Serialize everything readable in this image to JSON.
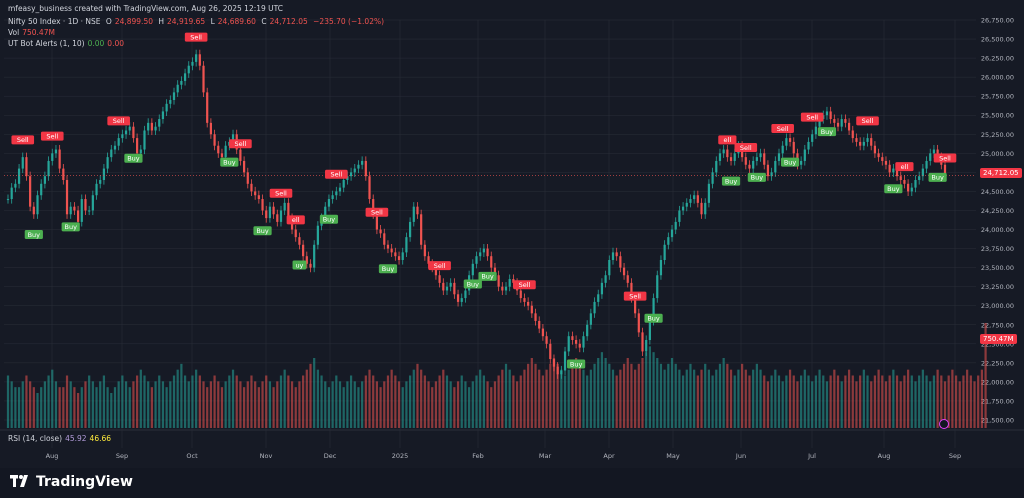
{
  "header": {
    "credit": "mfeasy_business created with TradingView.com, Aug 26, 2025 12:19 UTC",
    "symbol": "Nifty 50 Index · 1D · NSE",
    "o_label": "O",
    "o_value": "24,899.50",
    "h_label": "H",
    "h_value": "24,919.65",
    "l_label": "L",
    "l_value": "24,689.60",
    "c_label": "C",
    "c_value": "24,712.05",
    "change": "−235.70 (−1.02%)",
    "vol_label": "Vol",
    "vol_value": "750.47M",
    "ut_label": "UT Bot Alerts (1, 10)",
    "ut_v1": "0.00",
    "ut_v2": "0.00",
    "rsi_label": "RSI (14, close)",
    "rsi_v1": "45.92",
    "rsi_v2": "46.66"
  },
  "brand": "TradingView",
  "colors": {
    "up": "#26a69a",
    "down": "#ef5350",
    "buy": "#4caf50",
    "sell": "#f23645",
    "bg": "#161a25",
    "grid": "#2a2e39"
  },
  "chart_data": {
    "type": "candlestick",
    "y_ticks": [
      "26,750.00",
      "26,500.00",
      "26,250.00",
      "26,000.00",
      "25,750.00",
      "25,500.00",
      "25,250.00",
      "25,000.00",
      "24,750.00",
      "24,500.00",
      "24,250.00",
      "24,000.00",
      "23,750.00",
      "23,500.00",
      "23,250.00",
      "23,000.00",
      "22,750.00",
      "22,500.00",
      "22,250.00",
      "22,000.00",
      "21,750.00",
      "21,500.00"
    ],
    "ylim": [
      21500,
      26750
    ],
    "x_labels": [
      "Aug",
      "Sep",
      "Oct",
      "Nov",
      "Dec",
      "2025",
      "Feb",
      "Mar",
      "Apr",
      "May",
      "Jun",
      "Jul",
      "Aug",
      "Sep"
    ],
    "last_price": "24,712.05",
    "last_volume": "750.47M",
    "closes": [
      24400,
      24550,
      24600,
      24800,
      24950,
      24700,
      24300,
      24200,
      24450,
      24600,
      24700,
      24900,
      25000,
      25050,
      24800,
      24650,
      24200,
      24300,
      24250,
      24100,
      24400,
      24250,
      24250,
      24450,
      24600,
      24650,
      24800,
      24950,
      25050,
      25100,
      25200,
      25250,
      25300,
      25350,
      25200,
      25000,
      25050,
      25300,
      25400,
      25300,
      25350,
      25450,
      25550,
      25650,
      25700,
      25800,
      25900,
      25950,
      26050,
      26150,
      26200,
      26300,
      26150,
      25800,
      25400,
      25250,
      25100,
      25000,
      24950,
      25100,
      25150,
      25250,
      25050,
      24900,
      24750,
      24600,
      24500,
      24450,
      24400,
      24250,
      24150,
      24300,
      24200,
      24100,
      24250,
      24350,
      24150,
      24000,
      23900,
      23800,
      23650,
      23550,
      23500,
      23800,
      24050,
      24150,
      24300,
      24400,
      24450,
      24500,
      24550,
      24650,
      24700,
      24750,
      24800,
      24850,
      24900,
      24700,
      24400,
      24200,
      24000,
      23950,
      23800,
      23750,
      23700,
      23650,
      23600,
      23700,
      23900,
      24100,
      24300,
      24200,
      23800,
      23650,
      23550,
      23500,
      23400,
      23300,
      23200,
      23250,
      23300,
      23150,
      23050,
      23100,
      23200,
      23400,
      23550,
      23650,
      23700,
      23750,
      23650,
      23500,
      23400,
      23250,
      23200,
      23250,
      23350,
      23300,
      23200,
      23100,
      23050,
      23000,
      22900,
      22800,
      22700,
      22600,
      22500,
      22300,
      22200,
      22100,
      22150,
      22400,
      22600,
      22550,
      22500,
      22450,
      22600,
      22750,
      22900,
      23050,
      23150,
      23300,
      23400,
      23600,
      23700,
      23650,
      23500,
      23400,
      23300,
      23100,
      22900,
      22650,
      22400,
      22550,
      22800,
      23100,
      23400,
      23600,
      23800,
      23900,
      24000,
      24100,
      24250,
      24300,
      24350,
      24400,
      24450,
      24350,
      24200,
      24350,
      24600,
      24750,
      24900,
      25000,
      25050,
      24950,
      24900,
      25000,
      25100,
      24950,
      24850,
      24800,
      24900,
      24950,
      25000,
      24850,
      24700,
      24750,
      24900,
      25000,
      25100,
      25200,
      25150,
      25000,
      24850,
      24900,
      25050,
      25150,
      25250,
      25350,
      25450,
      25500,
      25550,
      25450,
      25400,
      25350,
      25450,
      25400,
      25300,
      25200,
      25150,
      25100,
      25150,
      25200,
      25100,
      25000,
      24950,
      24900,
      24850,
      24750,
      24800,
      24700,
      24650,
      24600,
      24500,
      24550,
      24650,
      24700,
      24800,
      24900,
      25000,
      25050,
      24950,
      24850,
      24712
    ],
    "volumes": [
      9,
      8,
      7,
      7,
      8,
      9,
      8,
      7,
      6,
      7,
      8,
      9,
      10,
      8,
      7,
      7,
      9,
      8,
      7,
      6,
      7,
      8,
      9,
      8,
      7,
      8,
      9,
      7,
      6,
      7,
      8,
      9,
      8,
      7,
      8,
      9,
      10,
      9,
      8,
      7,
      8,
      9,
      8,
      7,
      8,
      9,
      10,
      11,
      9,
      8,
      9,
      10,
      9,
      8,
      7,
      8,
      9,
      8,
      7,
      8,
      9,
      10,
      9,
      8,
      7,
      8,
      9,
      8,
      7,
      8,
      9,
      8,
      7,
      8,
      9,
      10,
      9,
      8,
      7,
      8,
      9,
      10,
      11,
      12,
      10,
      9,
      8,
      7,
      8,
      9,
      8,
      7,
      8,
      9,
      8,
      7,
      8,
      9,
      10,
      9,
      8,
      7,
      8,
      9,
      10,
      9,
      8,
      7,
      8,
      9,
      10,
      11,
      10,
      9,
      8,
      7,
      8,
      9,
      10,
      9,
      8,
      7,
      8,
      9,
      8,
      7,
      8,
      9,
      10,
      9,
      8,
      7,
      8,
      9,
      10,
      11,
      10,
      9,
      8,
      9,
      10,
      11,
      12,
      11,
      10,
      9,
      10,
      11,
      12,
      11,
      10,
      9,
      10,
      11,
      12,
      11,
      10,
      9,
      10,
      11,
      12,
      13,
      12,
      11,
      10,
      9,
      10,
      11,
      12,
      11,
      10,
      11,
      12,
      13,
      14,
      13,
      12,
      11,
      10,
      11,
      12,
      11,
      10,
      9,
      10,
      11,
      10,
      9,
      10,
      11,
      10,
      9,
      10,
      11,
      12,
      11,
      10,
      9,
      10,
      11,
      10,
      9,
      10,
      11,
      10,
      9,
      8,
      9,
      10,
      9,
      8,
      9,
      10,
      9,
      8,
      9,
      10,
      9,
      8,
      9,
      10,
      9,
      8,
      9,
      10,
      9,
      8,
      9,
      10,
      9,
      8,
      9,
      10,
      9,
      8,
      9,
      10,
      9,
      8,
      9,
      10,
      9,
      8,
      9,
      10,
      9,
      8,
      9,
      10,
      9,
      8,
      9,
      10,
      9,
      8,
      9,
      10,
      9,
      8,
      9,
      10,
      9,
      8,
      9,
      10,
      18
    ],
    "signals": [
      {
        "type": "Sell",
        "label": "Sell",
        "i": 4
      },
      {
        "type": "Buy",
        "label": "Buy",
        "i": 7
      },
      {
        "type": "Sell",
        "label": "Sell",
        "i": 12
      },
      {
        "type": "Buy",
        "label": "Buy",
        "i": 17
      },
      {
        "type": "Sell",
        "label": "Sell",
        "i": 30
      },
      {
        "type": "Buy",
        "label": "Buy",
        "i": 34
      },
      {
        "type": "Sell",
        "label": "Sell",
        "i": 51
      },
      {
        "type": "Buy",
        "label": "Buy",
        "i": 60
      },
      {
        "type": "Sell",
        "label": "Sell",
        "i": 63
      },
      {
        "type": "Buy",
        "label": "Buy",
        "i": 69
      },
      {
        "type": "Sell",
        "label": "Sell",
        "i": 74
      },
      {
        "type": "Sell",
        "label": "ell",
        "i": 78
      },
      {
        "type": "Buy",
        "label": "uy",
        "i": 79
      },
      {
        "type": "Sell",
        "label": "Sell",
        "i": 89
      },
      {
        "type": "Buy",
        "label": "Buy",
        "i": 87
      },
      {
        "type": "Sell",
        "label": "Sell",
        "i": 100
      },
      {
        "type": "Buy",
        "label": "Buy",
        "i": 103
      },
      {
        "type": "Sell",
        "label": "Sell",
        "i": 117
      },
      {
        "type": "Buy",
        "label": "Buy",
        "i": 126
      },
      {
        "type": "Sell",
        "label": "Sell",
        "i": 140
      },
      {
        "type": "Buy",
        "label": "Buy",
        "i": 130
      },
      {
        "type": "Buy",
        "label": "Buy",
        "i": 154
      },
      {
        "type": "Sell",
        "label": "Sell",
        "i": 170
      },
      {
        "type": "Buy",
        "label": "Buy",
        "i": 175
      },
      {
        "type": "Sell",
        "label": "ell",
        "i": 195
      },
      {
        "type": "Buy",
        "label": "Buy",
        "i": 196
      },
      {
        "type": "Sell",
        "label": "Sell",
        "i": 200
      },
      {
        "type": "Buy",
        "label": "Buy",
        "i": 203
      },
      {
        "type": "Sell",
        "label": "Sell",
        "i": 210
      },
      {
        "type": "Buy",
        "label": "Buy",
        "i": 212
      },
      {
        "type": "Sell",
        "label": "Sell",
        "i": 218
      },
      {
        "type": "Buy",
        "label": "Buy",
        "i": 222
      },
      {
        "type": "Sell",
        "label": "Sell",
        "i": 233
      },
      {
        "type": "Buy",
        "label": "Buy",
        "i": 240
      },
      {
        "type": "Sell",
        "label": "ell",
        "i": 243
      },
      {
        "type": "Buy",
        "label": "Buy",
        "i": 252
      },
      {
        "type": "Sell",
        "label": "Sell",
        "i": 255
      }
    ]
  }
}
